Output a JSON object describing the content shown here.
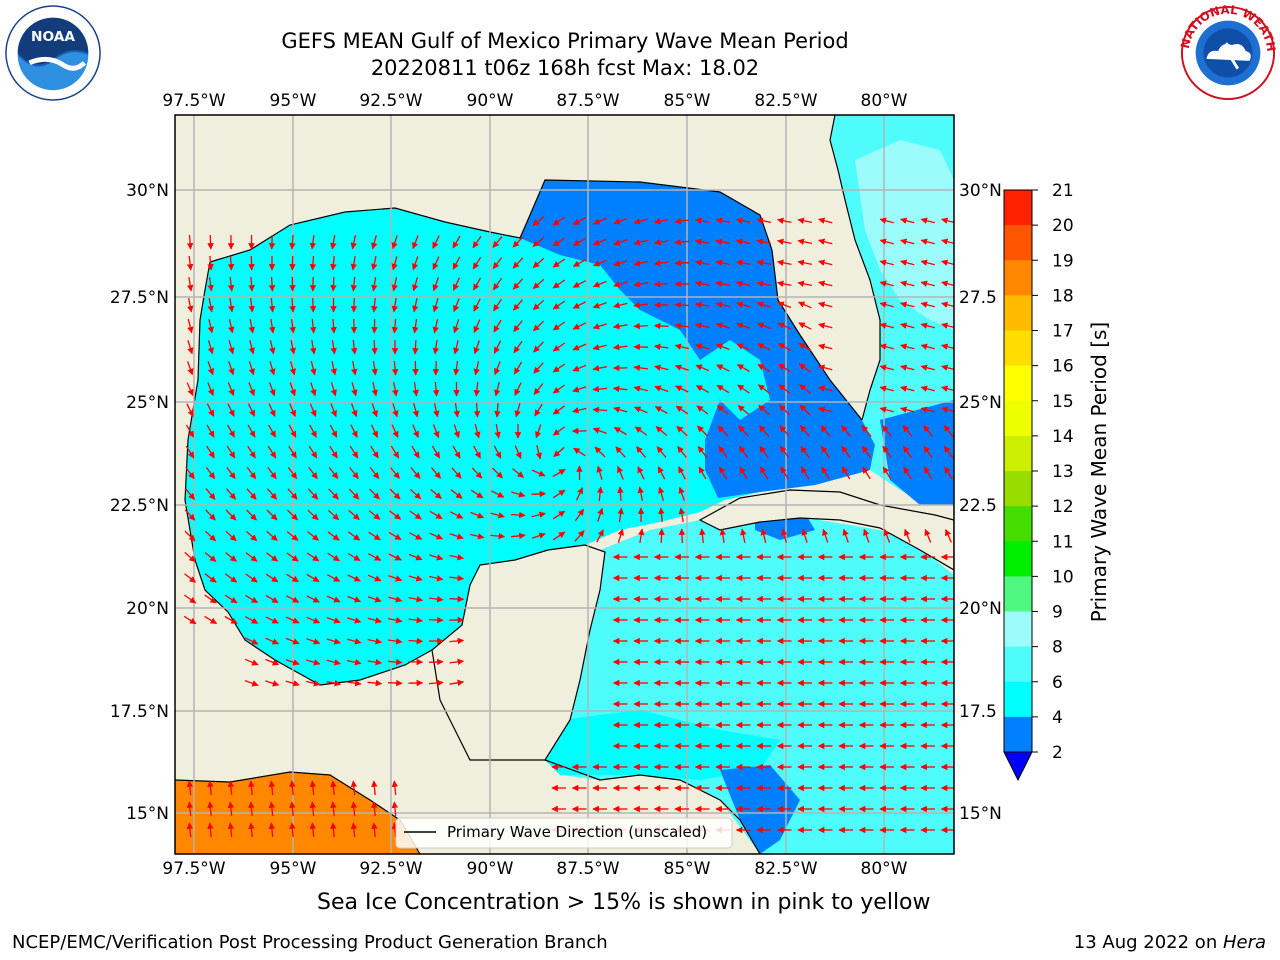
{
  "header": {
    "title_line1": "GEFS MEAN Gulf of Mexico Primary Wave Mean Period",
    "title_line2": "20220811 t06z 168h fcst   Max: 18.02"
  },
  "logos": {
    "left": "noaa-logo",
    "right": "nws-logo"
  },
  "map": {
    "lon_labels": [
      "97.5°W",
      "95°W",
      "92.5°W",
      "90°W",
      "87.5°W",
      "85°W",
      "82.5°W",
      "80°W"
    ],
    "lat_labels": [
      "30°N",
      "27.5°N",
      "25°N",
      "22.5°N",
      "20°N",
      "17.5°N",
      "15°N"
    ],
    "lat_labels_right": [
      "30°N",
      "27.5",
      "25°N",
      "22.5",
      "20°N",
      "17.5",
      "15°N"
    ],
    "legend_label": "Primary Wave Direction (unscaled)",
    "colors": {
      "land": "#f0eedc",
      "ocean_main": "#00ffff",
      "ocean_light": "#4ffcfc",
      "ocean_dark": "#0080ff",
      "arrow": "#ff0000",
      "grid": "#b4b4b4"
    }
  },
  "colorbar": {
    "label": "Primary Wave Mean Period [s]",
    "ticks": [
      "2",
      "4",
      "6",
      "8",
      "9",
      "10",
      "11",
      "12",
      "13",
      "14",
      "15",
      "16",
      "17",
      "18",
      "19",
      "20",
      "21"
    ],
    "colors": [
      "#0080ff",
      "#00ffff",
      "#4ffcfc",
      "#9cfcfc",
      "#4ff780",
      "#00ee00",
      "#44dd00",
      "#99dd00",
      "#ccee00",
      "#eeff00",
      "#ffff00",
      "#ffdd00",
      "#ffbb00",
      "#ff8800",
      "#ff5500",
      "#ff2200"
    ]
  },
  "note": "Sea Ice Concentration > 15% is shown in pink to yellow",
  "footer": {
    "left": "NCEP/EMC/Verification Post Processing Product Generation Branch",
    "right_date": "13 Aug 2022 on ",
    "right_host": "Hera"
  }
}
